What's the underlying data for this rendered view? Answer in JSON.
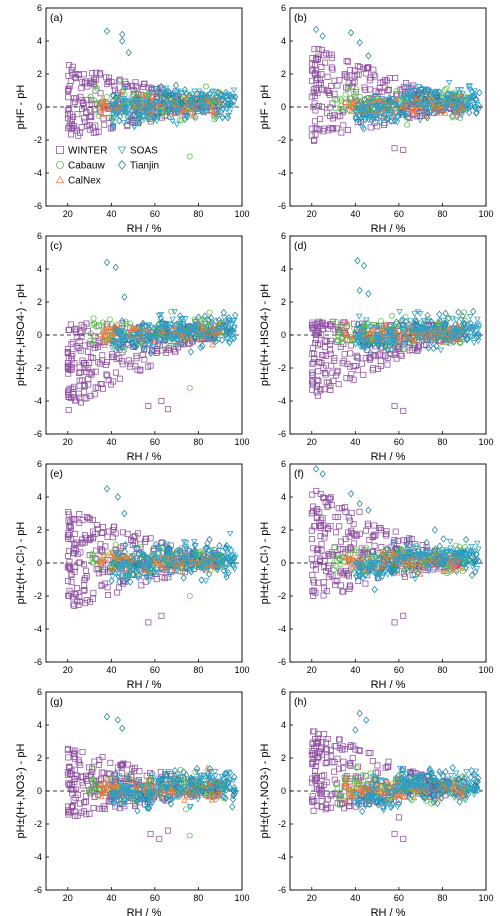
{
  "series_styles": [
    {
      "name": "WINTER",
      "color": "#8e4fa0",
      "marker": "square"
    },
    {
      "name": "Cabauw",
      "color": "#55c242",
      "marker": "circle"
    },
    {
      "name": "CalNex",
      "color": "#f27a3c",
      "marker": "triangle-up"
    },
    {
      "name": "SOAS",
      "color": "#2aa0c7",
      "marker": "triangle-down"
    },
    {
      "name": "Tianjin",
      "color": "#1e7fa0",
      "marker": "diamond"
    }
  ],
  "chart_data": [
    {
      "type": "scatter",
      "panel_label": "(a)",
      "xlabel": "RH / %",
      "ylabel": "pHF - pH",
      "xlim": [
        10,
        100
      ],
      "ylim": [
        -6,
        6
      ],
      "x_ticks": [
        20,
        40,
        60,
        80,
        100
      ],
      "y_ticks": [
        -6,
        -4,
        -2,
        0,
        2,
        4,
        6
      ],
      "reference_line": 0,
      "legend": "bottom-left",
      "outliers": [
        [
          38,
          4.6
        ],
        [
          45,
          4.4
        ],
        [
          45,
          4.0
        ],
        [
          48,
          3.3
        ],
        [
          58,
          -2.6
        ],
        [
          60,
          -2.9
        ],
        [
          63,
          -3.0
        ],
        [
          76,
          -3.0
        ]
      ]
    },
    {
      "type": "scatter",
      "panel_label": "(b)",
      "xlabel": "RH / %",
      "ylabel": "pHF - pH",
      "xlim": [
        10,
        100
      ],
      "ylim": [
        -6,
        6
      ],
      "x_ticks": [
        20,
        40,
        60,
        80,
        100
      ],
      "y_ticks": [
        -6,
        -4,
        -2,
        0,
        2,
        4,
        6
      ],
      "reference_line": 0,
      "outliers": [
        [
          22,
          4.7
        ],
        [
          25,
          4.3
        ],
        [
          38,
          4.5
        ],
        [
          42,
          3.9
        ],
        [
          46,
          3.1
        ],
        [
          58,
          -2.5
        ],
        [
          62,
          -2.6
        ]
      ]
    },
    {
      "type": "scatter",
      "panel_label": "(c)",
      "xlabel": "RH / %",
      "ylabel": "pH±(H+,HSO4-) - pH",
      "xlim": [
        10,
        100
      ],
      "ylim": [
        -6,
        6
      ],
      "x_ticks": [
        20,
        40,
        60,
        80,
        100
      ],
      "y_ticks": [
        -6,
        -4,
        -2,
        0,
        2,
        4,
        6
      ],
      "reference_line": 0,
      "outliers": [
        [
          38,
          4.4
        ],
        [
          42,
          4.1
        ],
        [
          46,
          2.3
        ],
        [
          57,
          -4.3
        ],
        [
          63,
          -4.0
        ],
        [
          66,
          -4.5
        ],
        [
          76,
          -3.2
        ]
      ]
    },
    {
      "type": "scatter",
      "panel_label": "(d)",
      "xlabel": "RH / %",
      "ylabel": "pH±(H+,HSO4-) - pH",
      "xlim": [
        10,
        100
      ],
      "ylim": [
        -6,
        6
      ],
      "x_ticks": [
        20,
        40,
        60,
        80,
        100
      ],
      "y_ticks": [
        -6,
        -4,
        -2,
        0,
        2,
        4,
        6
      ],
      "reference_line": 0,
      "outliers": [
        [
          41,
          4.5
        ],
        [
          44,
          4.2
        ],
        [
          42,
          2.7
        ],
        [
          46,
          2.5
        ],
        [
          58,
          -4.3
        ],
        [
          62,
          -4.6
        ]
      ]
    },
    {
      "type": "scatter",
      "panel_label": "(e)",
      "xlabel": "RH / %",
      "ylabel": "pH±(H+,Cl-) - pH",
      "xlim": [
        10,
        100
      ],
      "ylim": [
        -6,
        6
      ],
      "x_ticks": [
        20,
        40,
        60,
        80,
        100
      ],
      "y_ticks": [
        -6,
        -4,
        -2,
        0,
        2,
        4,
        6
      ],
      "reference_line": 0,
      "outliers": [
        [
          38,
          4.5
        ],
        [
          43,
          4.0
        ],
        [
          46,
          3.0
        ],
        [
          57,
          -3.6
        ],
        [
          63,
          -3.2
        ],
        [
          76,
          -2.0
        ]
      ]
    },
    {
      "type": "scatter",
      "panel_label": "(f)",
      "xlabel": "RH / %",
      "ylabel": "pH±(H+,Cl-) - pH",
      "xlim": [
        10,
        100
      ],
      "ylim": [
        -6,
        6
      ],
      "x_ticks": [
        20,
        40,
        60,
        80,
        100
      ],
      "y_ticks": [
        -6,
        -4,
        -2,
        0,
        2,
        4,
        6
      ],
      "reference_line": 0,
      "outliers": [
        [
          22,
          5.7
        ],
        [
          25,
          5.4
        ],
        [
          38,
          4.2
        ],
        [
          42,
          3.6
        ],
        [
          46,
          3.2
        ],
        [
          58,
          -3.6
        ],
        [
          62,
          -3.2
        ]
      ]
    },
    {
      "type": "scatter",
      "panel_label": "(g)",
      "xlabel": "RH / %",
      "ylabel": "pH±(H+,NO3-) - pH",
      "xlim": [
        10,
        100
      ],
      "ylim": [
        -6,
        6
      ],
      "x_ticks": [
        20,
        40,
        60,
        80,
        100
      ],
      "y_ticks": [
        -6,
        -4,
        -2,
        0,
        2,
        4,
        6
      ],
      "reference_line": 0,
      "outliers": [
        [
          38,
          4.5
        ],
        [
          43,
          4.3
        ],
        [
          45,
          3.8
        ],
        [
          58,
          -2.6
        ],
        [
          62,
          -2.9
        ],
        [
          66,
          -2.4
        ],
        [
          76,
          -2.7
        ]
      ]
    },
    {
      "type": "scatter",
      "panel_label": "(h)",
      "xlabel": "RH / %",
      "ylabel": "pH±(H+,NO3-) - pH",
      "xlim": [
        10,
        100
      ],
      "ylim": [
        -6,
        6
      ],
      "x_ticks": [
        20,
        40,
        60,
        80,
        100
      ],
      "y_ticks": [
        -6,
        -4,
        -2,
        0,
        2,
        4,
        6
      ],
      "reference_line": 0,
      "outliers": [
        [
          42,
          4.7
        ],
        [
          45,
          4.3
        ],
        [
          40,
          3.7
        ],
        [
          58,
          -2.6
        ],
        [
          62,
          -2.9
        ],
        [
          60,
          -1.6
        ]
      ]
    }
  ]
}
